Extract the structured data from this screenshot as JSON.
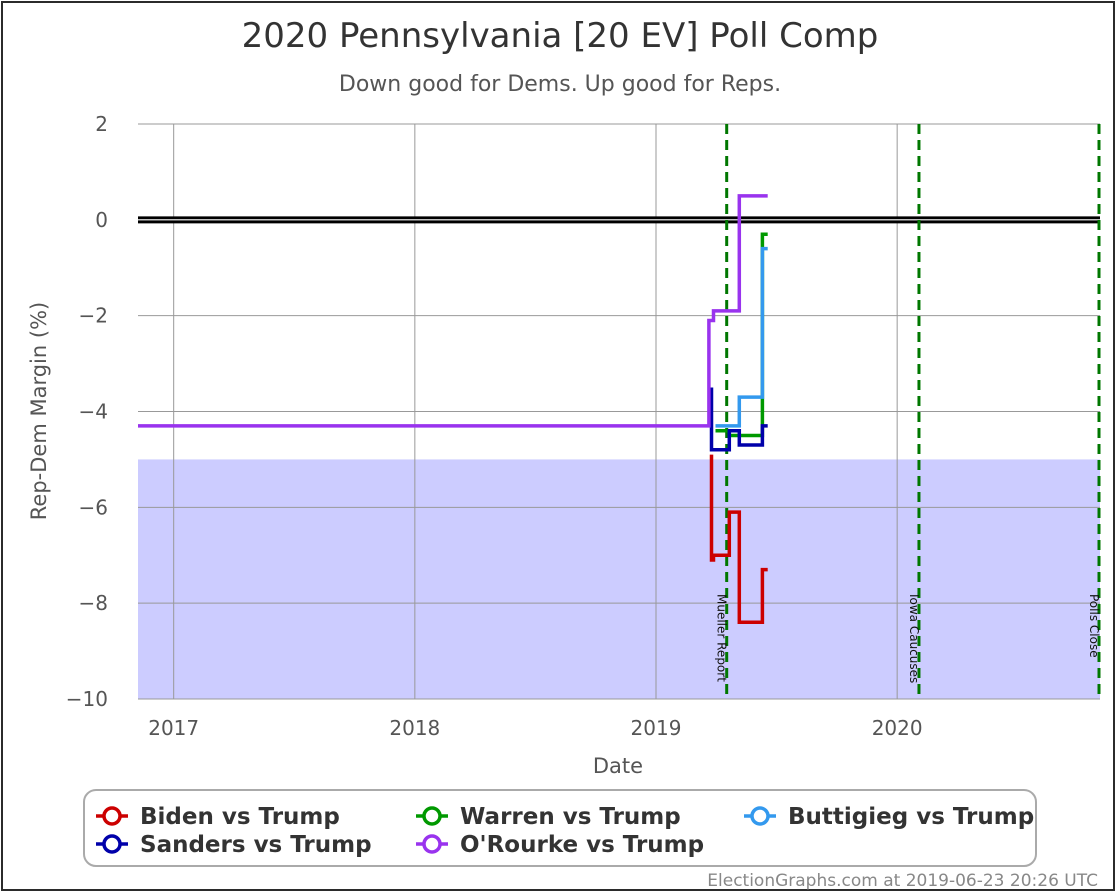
{
  "chart_data": {
    "type": "line",
    "title": "2020 Pennsylvania [20 EV] Poll Comp",
    "subtitle": "Down good for Dems. Up good for Reps.",
    "xlabel": "Date",
    "ylabel": "Rep-Dem Margin (%)",
    "xlim": [
      "2016-11-08",
      "2020-11-03"
    ],
    "ylim": [
      -10,
      2
    ],
    "x_ticks": [
      {
        "date": "2017-01-01",
        "label": "2017"
      },
      {
        "date": "2018-01-01",
        "label": "2018"
      },
      {
        "date": "2019-01-01",
        "label": "2019"
      },
      {
        "date": "2020-01-01",
        "label": "2020"
      }
    ],
    "y_ticks": [
      {
        "value": 2,
        "label": "2"
      },
      {
        "value": 0,
        "label": "0"
      },
      {
        "value": -2,
        "label": "−2"
      },
      {
        "value": -4,
        "label": "−4"
      },
      {
        "value": -6,
        "label": "−6"
      },
      {
        "value": -8,
        "label": "−8"
      },
      {
        "value": -10,
        "label": "−10"
      }
    ],
    "grid": true,
    "shaded_band": {
      "from": -10,
      "to": -5,
      "color": "#ccccff"
    },
    "zero_line_color": "#000000",
    "events": [
      {
        "date": "2019-04-18",
        "label": "Mueller Report",
        "color": "#007700"
      },
      {
        "date": "2020-02-03",
        "label": "Iowa Caucuses",
        "color": "#007700"
      },
      {
        "date": "2020-11-03",
        "label": "Polls Close",
        "color": "#007700"
      }
    ],
    "legend_position": "bottom",
    "series": [
      {
        "name": "Biden vs Trump",
        "color": "#cc0000",
        "points": [
          [
            "2019-03-26",
            -4.9
          ],
          [
            "2019-03-26",
            -7.1
          ],
          [
            "2019-03-29",
            -7.1
          ],
          [
            "2019-03-29",
            -7.0
          ],
          [
            "2019-04-22",
            -7.0
          ],
          [
            "2019-04-22",
            -6.1
          ],
          [
            "2019-05-07",
            -6.1
          ],
          [
            "2019-05-07",
            -8.4
          ],
          [
            "2019-06-11",
            -8.4
          ],
          [
            "2019-06-11",
            -7.3
          ],
          [
            "2019-06-19",
            -7.3
          ]
        ]
      },
      {
        "name": "Warren vs Trump",
        "color": "#009900",
        "points": [
          [
            "2019-04-01",
            -4.4
          ],
          [
            "2019-04-22",
            -4.4
          ],
          [
            "2019-04-22",
            -4.5
          ],
          [
            "2019-06-11",
            -4.5
          ],
          [
            "2019-06-11",
            -0.3
          ],
          [
            "2019-06-19",
            -0.3
          ]
        ]
      },
      {
        "name": "Buttigieg vs Trump",
        "color": "#3399ee",
        "points": [
          [
            "2019-04-01",
            -4.3
          ],
          [
            "2019-05-07",
            -4.3
          ],
          [
            "2019-05-07",
            -3.7
          ],
          [
            "2019-06-11",
            -3.7
          ],
          [
            "2019-06-11",
            -0.6
          ],
          [
            "2019-06-19",
            -0.6
          ]
        ]
      },
      {
        "name": "Sanders vs Trump",
        "color": "#0000aa",
        "points": [
          [
            "2019-03-26",
            -3.5
          ],
          [
            "2019-03-26",
            -4.8
          ],
          [
            "2019-04-22",
            -4.8
          ],
          [
            "2019-04-22",
            -4.4
          ],
          [
            "2019-05-07",
            -4.4
          ],
          [
            "2019-05-07",
            -4.7
          ],
          [
            "2019-06-11",
            -4.7
          ],
          [
            "2019-06-11",
            -4.3
          ],
          [
            "2019-06-19",
            -4.3
          ]
        ]
      },
      {
        "name": "O'Rourke vs Trump",
        "color": "#9933ee",
        "points": [
          [
            "2016-11-08",
            -4.3
          ],
          [
            "2019-03-22",
            -4.3
          ],
          [
            "2019-03-22",
            -2.1
          ],
          [
            "2019-03-29",
            -2.1
          ],
          [
            "2019-03-29",
            -1.9
          ],
          [
            "2019-05-07",
            -1.9
          ],
          [
            "2019-05-07",
            0.5
          ],
          [
            "2019-06-19",
            0.5
          ]
        ]
      }
    ]
  },
  "credit": "ElectionGraphs.com at 2019-06-23 20:26 UTC"
}
